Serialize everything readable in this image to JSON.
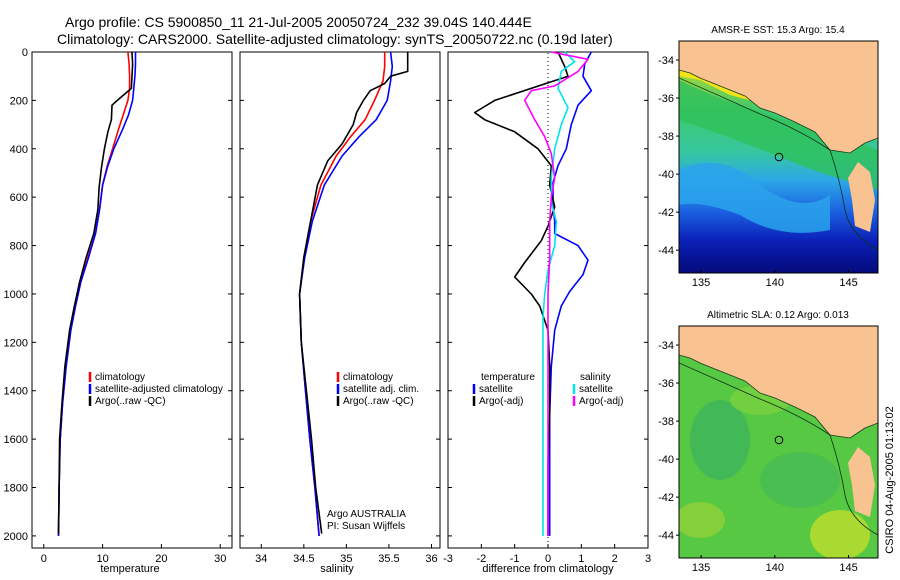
{
  "header": {
    "line1": "Argo profile: CS 5900850_11 21-Jul-2005 20050724_232 39.04S 140.444E",
    "line2": "Climatology: CARS2000. Satellite-adjusted climatology: synTS_20050722.nc (0.19d later)"
  },
  "side_stamp": "CSIRO 04-Aug-2005 01:13:02",
  "colors": {
    "climatology": "#ff0000",
    "satellite": "#0000ff",
    "argo": "#000000",
    "salinity_satellite": "#00e5ee",
    "salinity_argo": "#ff00ff",
    "land": "#f8c391",
    "map_coast": "#1a3a1a"
  },
  "chart_data": [
    {
      "type": "line",
      "name": "temperature-panel",
      "xlabel": "temperature",
      "ylabel": "",
      "xlim": [
        -2,
        32
      ],
      "ylim": [
        2050,
        0
      ],
      "xticks": [
        0,
        10,
        20,
        30
      ],
      "yticks": [
        0,
        200,
        400,
        600,
        800,
        1000,
        1200,
        1400,
        1600,
        1800,
        2000
      ],
      "legend": {
        "placement": "lower-middle",
        "entries": [
          "climatology",
          "satellite-adjusted climatology",
          "Argo(..raw -QC)"
        ]
      },
      "series": [
        {
          "name": "climatology",
          "color": "#ff0000",
          "points": [
            [
              14.3,
              0
            ],
            [
              14.5,
              50
            ],
            [
              14.6,
              100
            ],
            [
              14.6,
              150
            ],
            [
              14.3,
              200
            ],
            [
              13.5,
              260
            ],
            [
              12.7,
              320
            ],
            [
              11.7,
              400
            ],
            [
              10.8,
              470
            ],
            [
              10.0,
              550
            ],
            [
              9.5,
              650
            ],
            [
              8.8,
              750
            ],
            [
              7.5,
              850
            ],
            [
              6.3,
              950
            ],
            [
              5.4,
              1050
            ],
            [
              4.6,
              1150
            ],
            [
              3.8,
              1300
            ],
            [
              3.2,
              1450
            ],
            [
              2.8,
              1600
            ],
            [
              2.6,
              1800
            ],
            [
              2.5,
              2000
            ]
          ]
        },
        {
          "name": "satellite-adjusted climatology",
          "color": "#0000ff",
          "points": [
            [
              15.6,
              0
            ],
            [
              15.6,
              50
            ],
            [
              15.5,
              100
            ],
            [
              15.3,
              150
            ],
            [
              15.1,
              200
            ],
            [
              14.4,
              260
            ],
            [
              13.4,
              320
            ],
            [
              11.9,
              400
            ],
            [
              10.9,
              470
            ],
            [
              10.0,
              550
            ],
            [
              9.5,
              650
            ],
            [
              8.8,
              750
            ],
            [
              7.6,
              850
            ],
            [
              6.3,
              950
            ],
            [
              5.4,
              1050
            ],
            [
              4.6,
              1150
            ],
            [
              3.8,
              1300
            ],
            [
              3.2,
              1450
            ],
            [
              2.8,
              1600
            ],
            [
              2.6,
              1800
            ],
            [
              2.5,
              2000
            ]
          ]
        },
        {
          "name": "Argo(..raw -QC)",
          "color": "#000000",
          "points": [
            [
              15.0,
              0
            ],
            [
              15.1,
              50
            ],
            [
              15.0,
              100
            ],
            [
              14.9,
              150
            ],
            [
              12.5,
              200
            ],
            [
              11.6,
              220
            ],
            [
              11.5,
              280
            ],
            [
              10.9,
              330
            ],
            [
              10.3,
              400
            ],
            [
              9.8,
              480
            ],
            [
              9.4,
              560
            ],
            [
              9.2,
              650
            ],
            [
              8.5,
              750
            ],
            [
              7.2,
              850
            ],
            [
              6.1,
              950
            ],
            [
              5.2,
              1050
            ],
            [
              4.4,
              1150
            ],
            [
              3.6,
              1300
            ],
            [
              3.1,
              1450
            ],
            [
              2.7,
              1600
            ],
            [
              2.6,
              1800
            ],
            [
              2.5,
              1990
            ]
          ]
        }
      ]
    },
    {
      "type": "line",
      "name": "salinity-panel",
      "xlabel": "salinity",
      "ylabel": "",
      "xlim": [
        33.75,
        36.1
      ],
      "ylim": [
        2050,
        0
      ],
      "xticks": [
        34,
        34.5,
        35,
        35.5,
        36
      ],
      "yticks": [],
      "legend": {
        "placement": "lower-middle",
        "entries": [
          "climatology",
          "satellite adj. clim.",
          "Argo(..raw -QC)"
        ]
      },
      "annotations": [
        "Argo AUSTRALIA",
        "PI: Susan Wijffels"
      ],
      "series": [
        {
          "name": "climatology",
          "color": "#ff0000",
          "points": [
            [
              35.45,
              0
            ],
            [
              35.45,
              60
            ],
            [
              35.43,
              120
            ],
            [
              35.33,
              200
            ],
            [
              35.22,
              280
            ],
            [
              35.05,
              350
            ],
            [
              34.88,
              430
            ],
            [
              34.7,
              550
            ],
            [
              34.58,
              700
            ],
            [
              34.5,
              850
            ],
            [
              34.45,
              1000
            ],
            [
              34.47,
              1200
            ],
            [
              34.52,
              1400
            ],
            [
              34.57,
              1600
            ],
            [
              34.63,
              1800
            ],
            [
              34.68,
              2000
            ]
          ]
        },
        {
          "name": "satellite adj. clim.",
          "color": "#0000ff",
          "points": [
            [
              35.52,
              0
            ],
            [
              35.54,
              60
            ],
            [
              35.52,
              120
            ],
            [
              35.48,
              200
            ],
            [
              35.35,
              280
            ],
            [
              35.15,
              350
            ],
            [
              34.95,
              430
            ],
            [
              34.74,
              550
            ],
            [
              34.6,
              700
            ],
            [
              34.51,
              850
            ],
            [
              34.45,
              1000
            ],
            [
              34.47,
              1200
            ],
            [
              34.52,
              1400
            ],
            [
              34.57,
              1600
            ],
            [
              34.63,
              1800
            ],
            [
              34.68,
              2000
            ]
          ]
        },
        {
          "name": "Argo(..raw -QC)",
          "color": "#000000",
          "points": [
            [
              35.72,
              0
            ],
            [
              35.72,
              80
            ],
            [
              35.52,
              100
            ],
            [
              35.45,
              130
            ],
            [
              35.28,
              160
            ],
            [
              35.2,
              200
            ],
            [
              35.12,
              250
            ],
            [
              35.08,
              300
            ],
            [
              34.95,
              380
            ],
            [
              34.78,
              450
            ],
            [
              34.66,
              550
            ],
            [
              34.58,
              700
            ],
            [
              34.5,
              850
            ],
            [
              34.45,
              1000
            ],
            [
              34.47,
              1200
            ],
            [
              34.53,
              1400
            ],
            [
              34.59,
              1600
            ],
            [
              34.64,
              1800
            ],
            [
              34.71,
              1990
            ]
          ]
        }
      ]
    },
    {
      "type": "line",
      "name": "difference-panel",
      "xlabel": "difference from climatology",
      "ylabel": "",
      "xlim": [
        -3,
        3
      ],
      "ylim": [
        2050,
        0
      ],
      "xticks": [
        -3,
        -2,
        -1,
        0,
        1,
        2,
        3
      ],
      "yticks": [],
      "legend": {
        "placement": "lower",
        "entries": [
          "temperature",
          "satellite",
          "Argo(-adj)",
          "salinity",
          "satellite",
          "Argo(-adj)"
        ]
      },
      "series": [
        {
          "name": "temperature satellite",
          "color": "#0000ff",
          "points": [
            [
              1.3,
              0
            ],
            [
              1.1,
              50
            ],
            [
              1.05,
              100
            ],
            [
              1.3,
              160
            ],
            [
              0.9,
              220
            ],
            [
              0.7,
              300
            ],
            [
              0.55,
              400
            ],
            [
              0.3,
              470
            ],
            [
              0.15,
              540
            ],
            [
              0.15,
              620
            ],
            [
              0.2,
              700
            ],
            [
              0.2,
              750
            ],
            [
              0.9,
              800
            ],
            [
              1.2,
              860
            ],
            [
              1.05,
              920
            ],
            [
              0.65,
              990
            ],
            [
              0.4,
              1050
            ],
            [
              0.2,
              1150
            ],
            [
              0.1,
              1300
            ],
            [
              0.05,
              1500
            ],
            [
              0.05,
              1700
            ],
            [
              0.05,
              2000
            ]
          ]
        },
        {
          "name": "temperature Argo(-adj)",
          "color": "#000000",
          "points": [
            [
              0.3,
              0
            ],
            [
              0.5,
              60
            ],
            [
              0.6,
              100
            ],
            [
              -1.6,
              200
            ],
            [
              -2.2,
              250
            ],
            [
              -1.9,
              280
            ],
            [
              -1.0,
              330
            ],
            [
              -0.3,
              400
            ],
            [
              0.1,
              470
            ],
            [
              0.05,
              550
            ],
            [
              0.2,
              640
            ],
            [
              0.0,
              720
            ],
            [
              -0.2,
              780
            ],
            [
              -0.7,
              870
            ],
            [
              -1.0,
              930
            ],
            [
              -0.5,
              1000
            ],
            [
              -0.25,
              1050
            ],
            [
              0.0,
              1150
            ],
            [
              0.05,
              1300
            ],
            [
              0.05,
              1500
            ],
            [
              0.0,
              1700
            ],
            [
              0.0,
              2000
            ]
          ]
        },
        {
          "name": "salinity satellite",
          "color": "#00e5ee",
          "points": [
            [
              0.5,
              0
            ],
            [
              0.8,
              40
            ],
            [
              0.4,
              80
            ],
            [
              0.3,
              150
            ],
            [
              0.6,
              230
            ],
            [
              0.4,
              300
            ],
            [
              0.2,
              400
            ],
            [
              0.1,
              520
            ],
            [
              0.1,
              620
            ],
            [
              0.25,
              700
            ],
            [
              0.2,
              800
            ],
            [
              0.0,
              900
            ],
            [
              -0.1,
              1000
            ],
            [
              -0.15,
              1100
            ],
            [
              -0.15,
              1300
            ],
            [
              -0.15,
              1500
            ],
            [
              -0.15,
              1700
            ],
            [
              -0.15,
              2000
            ]
          ]
        },
        {
          "name": "salinity Argo(-adj)",
          "color": "#ff00ff",
          "points": [
            [
              0.1,
              0
            ],
            [
              1.2,
              30
            ],
            [
              0.9,
              80
            ],
            [
              0.2,
              140
            ],
            [
              -0.5,
              160
            ],
            [
              -0.7,
              200
            ],
            [
              -0.4,
              280
            ],
            [
              -0.1,
              350
            ],
            [
              0.1,
              420
            ],
            [
              0.2,
              520
            ],
            [
              0.1,
              600
            ],
            [
              0.05,
              700
            ],
            [
              0.05,
              850
            ],
            [
              0.0,
              1000
            ],
            [
              0.0,
              1200
            ],
            [
              0.0,
              1500
            ],
            [
              0.0,
              1800
            ],
            [
              0.0,
              2000
            ]
          ]
        }
      ]
    },
    {
      "type": "heatmap",
      "name": "sst-map",
      "title": "AMSR-E SST: 15.3 Argo: 15.4",
      "xticks": [
        135,
        140,
        145
      ],
      "yticks": [
        -34,
        -36,
        -38,
        -40,
        -42,
        -44
      ],
      "xlim": [
        133.5,
        147
      ],
      "ylim": [
        -45.2,
        -33
      ],
      "argo_position": [
        140.444,
        -39.04
      ]
    },
    {
      "type": "heatmap",
      "name": "sla-map",
      "title": "Altimetric SLA: 0.12 Argo: 0.013",
      "xticks": [
        135,
        140,
        145
      ],
      "yticks": [
        -34,
        -36,
        -38,
        -40,
        -42,
        -44
      ],
      "xlim": [
        133.5,
        147
      ],
      "ylim": [
        -45.2,
        -33
      ],
      "argo_position": [
        140.444,
        -39.04
      ]
    }
  ]
}
